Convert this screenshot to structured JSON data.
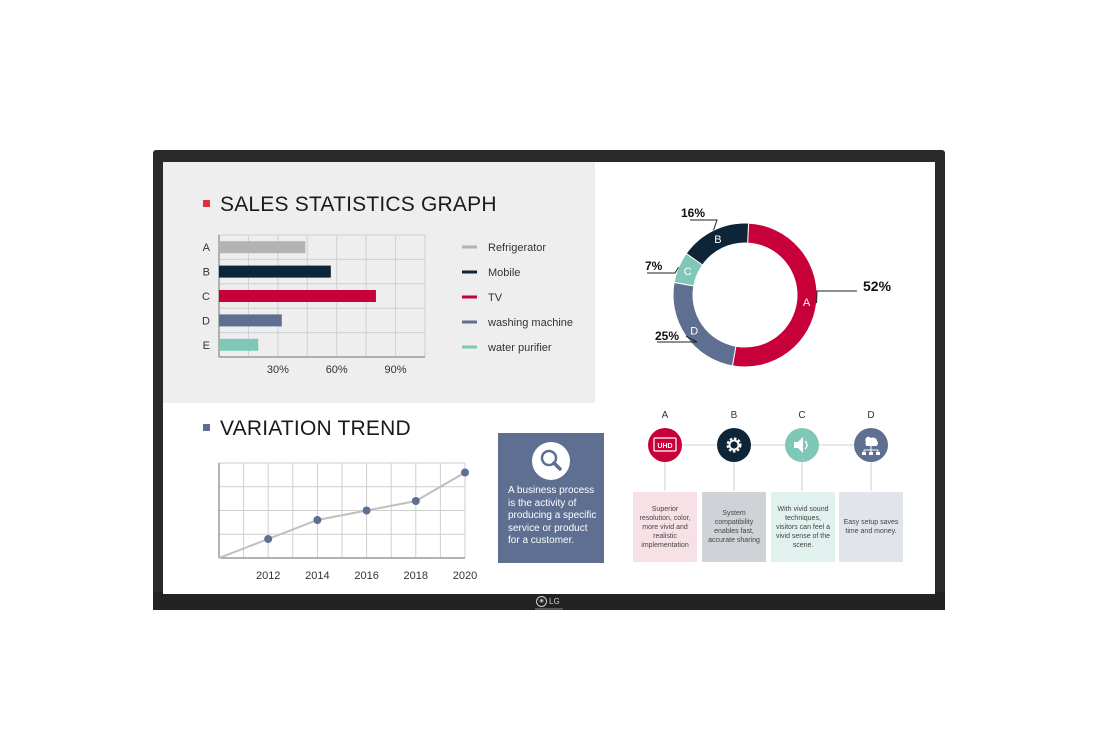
{
  "brand": {
    "logo_text": "LG"
  },
  "sales": {
    "title": "SALES STATISTICS GRAPH",
    "accent": "#e03040"
  },
  "variation": {
    "title": "VARIATION TREND",
    "accent": "#5e6f92"
  },
  "chart_data": [
    {
      "type": "bar",
      "orientation": "horizontal",
      "categories": [
        "A",
        "B",
        "C",
        "D",
        "E"
      ],
      "values": [
        44,
        57,
        80,
        32,
        20
      ],
      "xticks": [
        "30%",
        "60%",
        "90%"
      ],
      "xlim": [
        0,
        105
      ],
      "grid": true,
      "colors": [
        "#b3b3b3",
        "#0e2437",
        "#c8003a",
        "#5e6f92",
        "#7fc8b8"
      ],
      "legend": [
        "Refrigerator",
        "Mobile",
        "TV",
        "washing machine",
        "water purifier"
      ],
      "legend_position": "right"
    },
    {
      "type": "pie",
      "style": "donut",
      "labels": [
        "A",
        "B",
        "C",
        "D"
      ],
      "values": [
        52,
        16,
        7,
        25
      ],
      "value_labels": [
        "52%",
        "16%",
        "7%",
        "25%"
      ],
      "colors": [
        "#c8003a",
        "#0e2437",
        "#7fc8b8",
        "#5e6f92"
      ]
    },
    {
      "type": "line",
      "x": [
        2010,
        2012,
        2014,
        2016,
        2018,
        2020
      ],
      "y": [
        0,
        20,
        40,
        50,
        60,
        90
      ],
      "xticks": [
        "2012",
        "2014",
        "2016",
        "2018",
        "2020"
      ],
      "ylim": [
        0,
        100
      ],
      "grid": true,
      "line_color": "#bfbfbf",
      "marker_color": "#5e6f92"
    }
  ],
  "callout": {
    "icon": "search-icon",
    "text": "A business process is the activity of producing a specific service or product for a customer."
  },
  "features": [
    {
      "label": "A",
      "icon": "uhd-icon",
      "icon_text": "UHD",
      "color": "#c8003a",
      "box_color": "#f7e1e6",
      "text": "Superior resolution, color, more vivid and realistic implementation"
    },
    {
      "label": "B",
      "icon": "gear-icon",
      "color": "#0e2437",
      "box_color": "#cfd3d8",
      "text": "System compatibility enables fast, accurate sharing"
    },
    {
      "label": "C",
      "icon": "speaker-icon",
      "color": "#7fc8b8",
      "box_color": "#e1f1ee",
      "text": "With vivid sound techniques, visitors can feel a vivid sense of the scene."
    },
    {
      "label": "D",
      "icon": "network-icon",
      "color": "#5e6f92",
      "box_color": "#e2e4ec",
      "text": "Easy setup saves time and money."
    }
  ]
}
